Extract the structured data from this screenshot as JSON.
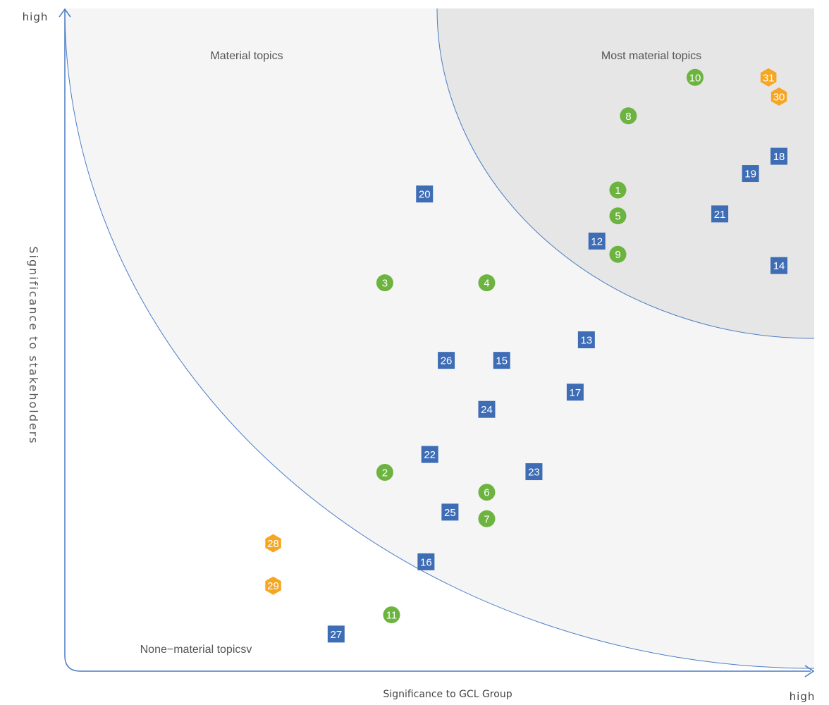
{
  "chart_data": {
    "type": "scatter",
    "xlabel": "Significance to GCL Group",
    "ylabel": "Significance to stakeholders",
    "x_high_label": "high",
    "y_high_label": "high",
    "regions": [
      {
        "name": "Material topics",
        "fill": "#f5f5f5"
      },
      {
        "name": "Most material topics",
        "fill": "#e6e6e6"
      },
      {
        "name": "None−material topicsv",
        "fill": "#ffffff"
      }
    ],
    "colors": {
      "circle": "#6cb33f",
      "square": "#3e6db5",
      "hexagon": "#f6a623",
      "axis": "#4a7cc4",
      "curve": "#4a7cc4"
    },
    "xlim": [
      0,
      100
    ],
    "ylim": [
      0,
      100
    ],
    "points": [
      {
        "id": "1",
        "shape": "circle",
        "x": 73.8,
        "y": 72.6
      },
      {
        "id": "2",
        "shape": "circle",
        "x": 42.7,
        "y": 30.0
      },
      {
        "id": "3",
        "shape": "circle",
        "x": 42.7,
        "y": 58.6
      },
      {
        "id": "4",
        "shape": "circle",
        "x": 56.3,
        "y": 58.6
      },
      {
        "id": "5",
        "shape": "circle",
        "x": 73.8,
        "y": 68.7
      },
      {
        "id": "6",
        "shape": "circle",
        "x": 56.3,
        "y": 27.0
      },
      {
        "id": "7",
        "shape": "circle",
        "x": 56.3,
        "y": 23.0
      },
      {
        "id": "8",
        "shape": "circle",
        "x": 75.2,
        "y": 83.8
      },
      {
        "id": "9",
        "shape": "circle",
        "x": 73.8,
        "y": 62.9
      },
      {
        "id": "10",
        "shape": "circle",
        "x": 84.1,
        "y": 89.6
      },
      {
        "id": "11",
        "shape": "circle",
        "x": 43.6,
        "y": 8.5
      },
      {
        "id": "12",
        "shape": "square",
        "x": 71.0,
        "y": 64.9
      },
      {
        "id": "13",
        "shape": "square",
        "x": 69.6,
        "y": 50.0
      },
      {
        "id": "14",
        "shape": "square",
        "x": 95.3,
        "y": 61.2
      },
      {
        "id": "15",
        "shape": "square",
        "x": 58.3,
        "y": 46.9
      },
      {
        "id": "16",
        "shape": "square",
        "x": 48.2,
        "y": 16.5
      },
      {
        "id": "17",
        "shape": "square",
        "x": 68.1,
        "y": 42.1
      },
      {
        "id": "18",
        "shape": "square",
        "x": 95.3,
        "y": 77.7
      },
      {
        "id": "19",
        "shape": "square",
        "x": 91.5,
        "y": 75.1
      },
      {
        "id": "20",
        "shape": "square",
        "x": 48.0,
        "y": 72.0
      },
      {
        "id": "21",
        "shape": "square",
        "x": 87.4,
        "y": 69.0
      },
      {
        "id": "22",
        "shape": "square",
        "x": 48.7,
        "y": 32.7
      },
      {
        "id": "23",
        "shape": "square",
        "x": 62.6,
        "y": 30.1
      },
      {
        "id": "24",
        "shape": "square",
        "x": 56.3,
        "y": 39.5
      },
      {
        "id": "25",
        "shape": "square",
        "x": 51.4,
        "y": 24.0
      },
      {
        "id": "26",
        "shape": "square",
        "x": 50.9,
        "y": 46.9
      },
      {
        "id": "27",
        "shape": "square",
        "x": 36.2,
        "y": 5.6
      },
      {
        "id": "28",
        "shape": "hexagon",
        "x": 27.8,
        "y": 19.3
      },
      {
        "id": "29",
        "shape": "hexagon",
        "x": 27.8,
        "y": 12.9
      },
      {
        "id": "30",
        "shape": "hexagon",
        "x": 95.3,
        "y": 86.7
      },
      {
        "id": "31",
        "shape": "hexagon",
        "x": 93.9,
        "y": 89.6
      }
    ]
  }
}
